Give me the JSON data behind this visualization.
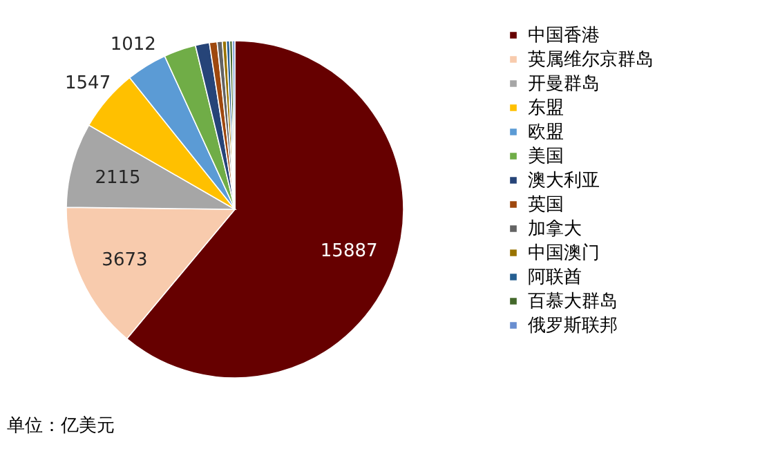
{
  "chart_data": {
    "type": "pie",
    "categories": [
      "中国香港",
      "英属维尔京群岛",
      "开曼群岛",
      "东盟",
      "欧盟",
      "美国",
      "澳大利亚",
      "英国",
      "加拿大",
      "中国澳门",
      "阿联酋",
      "百慕大群岛",
      "俄罗斯联邦"
    ],
    "values": [
      15887,
      3673,
      2115,
      1547,
      1012,
      800,
      350,
      190,
      130,
      100,
      80,
      70,
      60
    ],
    "value_labels": [
      "15887",
      "3673",
      "2115",
      "1547",
      "1012",
      null,
      null,
      null,
      null,
      null,
      null,
      null,
      null
    ],
    "colors": [
      "#660000",
      "#f8cbad",
      "#a6a6a6",
      "#ffc000",
      "#5b9bd5",
      "#70ad47",
      "#264478",
      "#9e480e",
      "#636363",
      "#997300",
      "#255e91",
      "#43682b",
      "#698ed0"
    ],
    "legend": "right",
    "annotations": [
      "单位：亿美元"
    ]
  }
}
